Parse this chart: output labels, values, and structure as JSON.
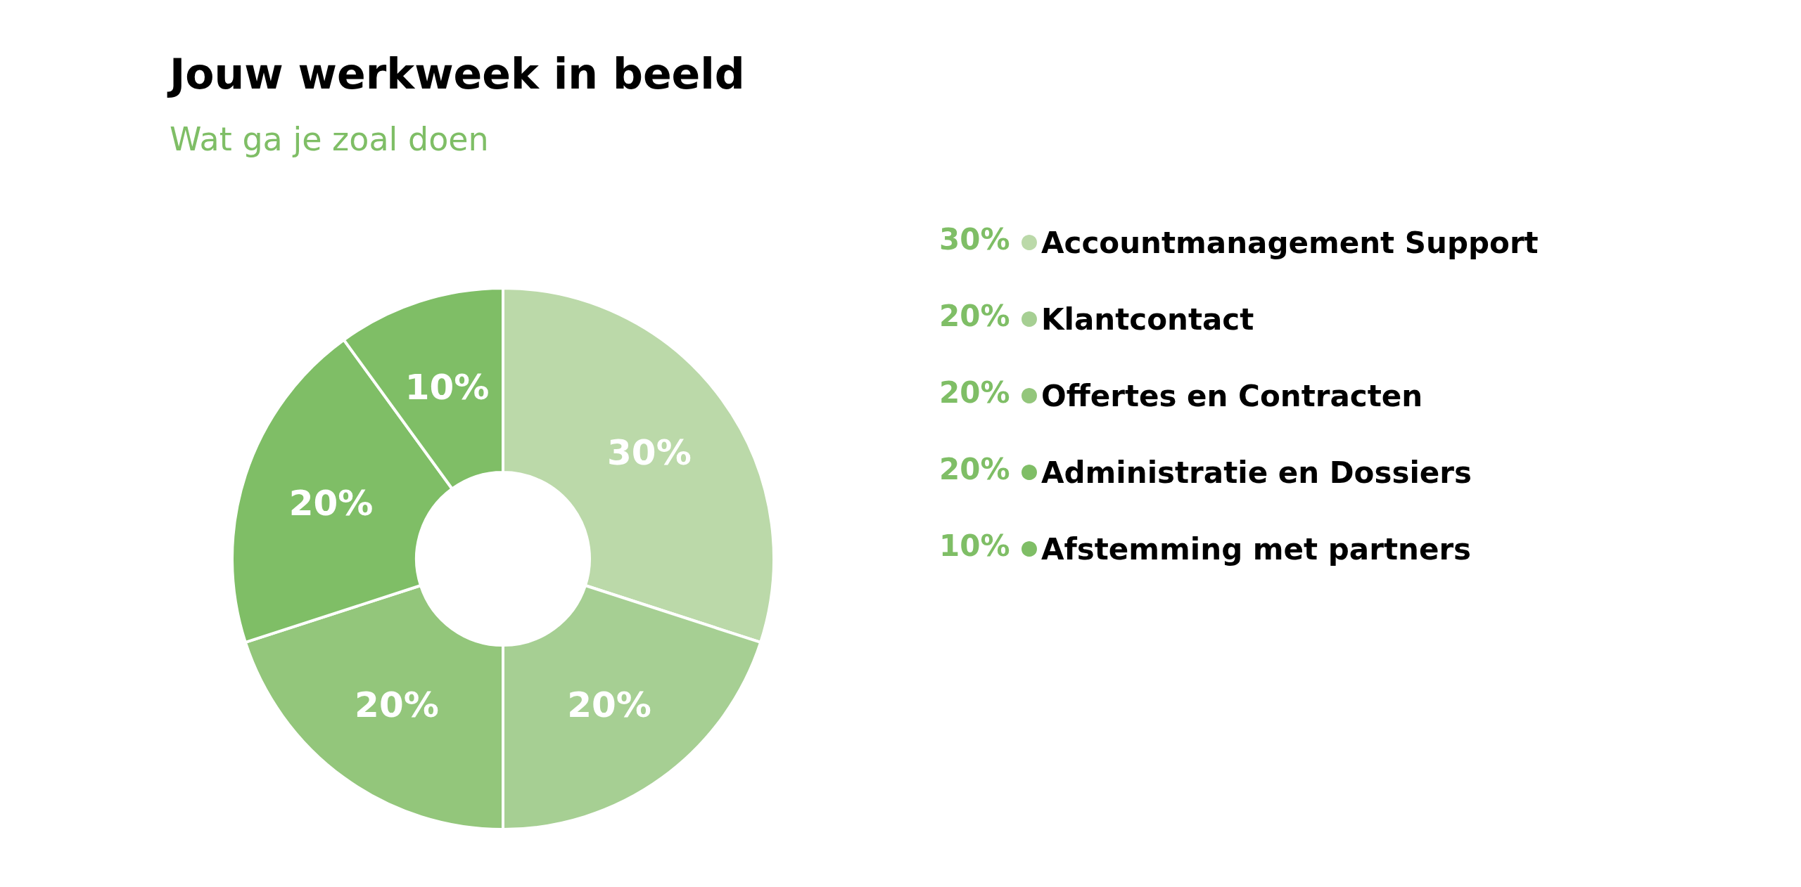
{
  "chart_data": {
    "type": "donut",
    "title": "Jouw werkweek in beeld",
    "subtitle": "Wat ga je zoal doen",
    "categories": [
      "Accountmanagement Support",
      "Klantcontact",
      "Offertes en Contracten",
      "Administratie en Dossiers",
      "Afstemming met partners"
    ],
    "values": [
      30,
      20,
      20,
      20,
      10
    ],
    "value_labels": [
      "30%",
      "20%",
      "20%",
      "20%",
      "10%"
    ],
    "colors": [
      "#bbd9a9",
      "#a6cf93",
      "#93c67b",
      "#7fbe66",
      "#7fbe66"
    ],
    "legend": "right"
  }
}
